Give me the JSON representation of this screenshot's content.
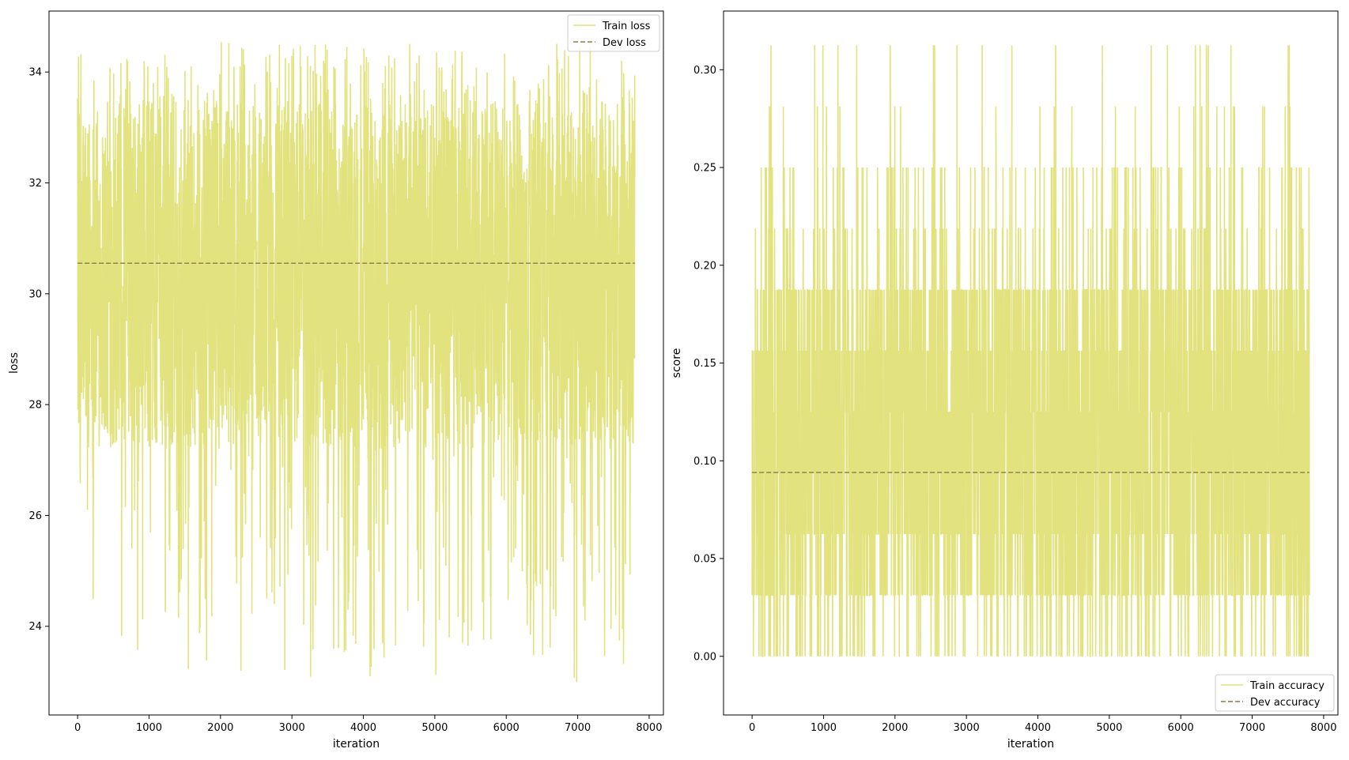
{
  "colors": {
    "train": "#e2e27f",
    "dev": "#8c7a4a",
    "frame": "#000000",
    "legend_border": "#cccccc"
  },
  "chart_data": [
    {
      "type": "line",
      "xlabel": "iteration",
      "ylabel": "loss",
      "xlim": [
        -400,
        8200
      ],
      "ylim": [
        22.4,
        35.1
      ],
      "xticks": [
        0,
        1000,
        2000,
        3000,
        4000,
        5000,
        6000,
        7000,
        8000
      ],
      "yticks": [
        24,
        26,
        28,
        30,
        32,
        34
      ],
      "xtick_labels": [
        "0",
        "1000",
        "2000",
        "3000",
        "4000",
        "5000",
        "6000",
        "7000",
        "8000"
      ],
      "ytick_labels": [
        "24",
        "26",
        "28",
        "30",
        "32",
        "34"
      ],
      "legend_position": "top-right",
      "x_range": [
        0,
        7800
      ],
      "series": [
        {
          "name": "Train loss",
          "style": "solid",
          "summary": {
            "min": 23.0,
            "max": 34.55,
            "typical_low": 27.2,
            "typical_high": 33.5
          },
          "description": "noisy per-iteration training loss oscillating densely between about 27 and 33.5, with spikes up to 34.55 and dips down to about 23"
        },
        {
          "name": "Dev loss",
          "style": "dashed",
          "values": [
            [
              0,
              30.55
            ],
            [
              7800,
              30.55
            ]
          ]
        }
      ]
    },
    {
      "type": "line",
      "xlabel": "iteration",
      "ylabel": "score",
      "xlim": [
        -400,
        8200
      ],
      "ylim": [
        -0.03,
        0.33
      ],
      "xticks": [
        0,
        1000,
        2000,
        3000,
        4000,
        5000,
        6000,
        7000,
        8000
      ],
      "yticks": [
        0.0,
        0.05,
        0.1,
        0.15,
        0.2,
        0.25,
        0.3
      ],
      "xtick_labels": [
        "0",
        "1000",
        "2000",
        "3000",
        "4000",
        "5000",
        "6000",
        "7000",
        "8000"
      ],
      "ytick_labels": [
        "0.00",
        "0.05",
        "0.10",
        "0.15",
        "0.20",
        "0.25",
        "0.30"
      ],
      "legend_position": "bottom-right",
      "x_range": [
        0,
        7800
      ],
      "series": [
        {
          "name": "Train accuracy",
          "style": "solid",
          "summary": {
            "min": 0.0,
            "max": 0.3125,
            "typical_low": 0.03125,
            "typical_high": 0.1875
          },
          "levels": [
            0.0,
            0.03125,
            0.0625,
            0.09375,
            0.125,
            0.15625,
            0.1875,
            0.21875,
            0.25,
            0.28125,
            0.3125
          ],
          "description": "noisy per-iteration training accuracy on discrete levels (multiples of 1/32), mostly between 0.03 and 0.19 with spikes to 0.31"
        },
        {
          "name": "Dev accuracy",
          "style": "dashed",
          "values": [
            [
              0,
              0.094
            ],
            [
              7800,
              0.094
            ]
          ]
        }
      ]
    }
  ]
}
